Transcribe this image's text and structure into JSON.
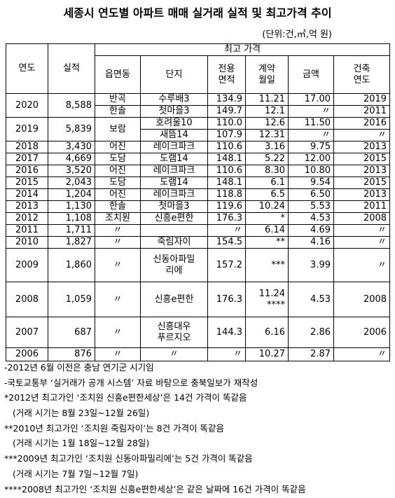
{
  "title": "세종시 연도별 아파트 매매 실거래 실적 및 최고가격 추이",
  "unit": "(단위:건,㎡,억 원)",
  "table": {
    "header": {
      "year": "연도",
      "count": "실적",
      "group": "최고 가격",
      "columns": [
        "읍면동",
        "단지",
        [
          "전용",
          "면적"
        ],
        [
          "계약",
          "월일"
        ],
        "금액",
        [
          "건축",
          "연도"
        ]
      ]
    },
    "rows": [
      {
        "year": "2020",
        "count": "8,588",
        "entries": [
          {
            "town": "반곡",
            "complex": "수루배3",
            "area": "134.9",
            "date": "11.21",
            "price": "17.00",
            "built": "2019"
          },
          {
            "town": "한솔",
            "complex": "첫마을3",
            "area": "149.7",
            "date": "12.1",
            "price": "〃",
            "built": "2011"
          }
        ]
      },
      {
        "year": "2019",
        "count": "5,839",
        "town": "보람",
        "entries": [
          {
            "complex": "호려울10",
            "area": "110.0",
            "date": "12.6",
            "price": "11.50",
            "built": "2016"
          },
          {
            "complex": "새뜸14",
            "area": "107.9",
            "date": "12.31",
            "price": "〃",
            "built": "〃"
          }
        ]
      },
      {
        "year": "2018",
        "count": "3,430",
        "entries": [
          {
            "town": "어진",
            "complex": "레이크파크",
            "area": "110.6",
            "date": "3.16",
            "price": "9.75",
            "built": "2013"
          }
        ]
      },
      {
        "year": "2017",
        "count": "4,669",
        "entries": [
          {
            "town": "도담",
            "complex": "도램14",
            "area": "148.1",
            "date": "5.22",
            "price": "12.00",
            "built": "2015"
          }
        ]
      },
      {
        "year": "2016",
        "count": "3,520",
        "entries": [
          {
            "town": "어진",
            "complex": "레이크파크",
            "area": "110.6",
            "date": "8.30",
            "price": "10.80",
            "built": "2013"
          }
        ]
      },
      {
        "year": "2015",
        "count": "2,043",
        "entries": [
          {
            "town": "도담",
            "complex": "도램14",
            "area": "148.1",
            "date": "6.1",
            "price": "9.54",
            "built": "2015"
          }
        ]
      },
      {
        "year": "2014",
        "count": "1,204",
        "entries": [
          {
            "town": "어진",
            "complex": "레이크파크",
            "area": "118.8",
            "date": "6.5",
            "price": "6.50",
            "built": "2013"
          }
        ]
      },
      {
        "year": "2013",
        "count": "1,130",
        "entries": [
          {
            "town": "한솔",
            "complex": "첫마을3",
            "area": "119.6",
            "date": "10.24",
            "price": "5.53",
            "built": "2011"
          }
        ]
      },
      {
        "year": "2012",
        "count": "1,108",
        "entries": [
          {
            "town": "조치원",
            "complex": "신흥e편한",
            "area": "176.3",
            "date": "*",
            "price": "4.53",
            "built": "2008"
          }
        ]
      },
      {
        "year": "2011",
        "count": "1,711",
        "entries": [
          {
            "town": "〃",
            "complex": null,
            "area": "〃",
            "date": "6.14",
            "price": "4.69",
            "built": "〃"
          }
        ]
      },
      {
        "year": "2010",
        "count": "1,827",
        "entries": [
          {
            "town": "〃",
            "complex": "죽림자이",
            "area": "154.5",
            "date": "**",
            "price": "4.16",
            "built": "〃"
          }
        ]
      },
      {
        "year": "2009",
        "count": "1,860",
        "entries": [
          {
            "town": "〃",
            "complex": [
              "신동아파밀",
              "리에"
            ],
            "area": "157.2",
            "date": "***",
            "price": "3.99",
            "built": "〃"
          }
        ]
      },
      {
        "year": "2008",
        "count": "1,059",
        "entries": [
          {
            "town": "〃",
            "complex": "신흥e편한",
            "area": "176.3",
            "date": [
              "11.24",
              "****"
            ],
            "price": "4.53",
            "built": "2008"
          }
        ]
      },
      {
        "year": "2007",
        "count": "687",
        "entries": [
          {
            "town": "〃",
            "complex": [
              "신흥대우",
              "푸르지오"
            ],
            "area": "144.3",
            "date": "6.16",
            "price": "2.86",
            "built": "2006"
          }
        ]
      },
      {
        "year": "2006",
        "count": "876",
        "entries": [
          {
            "town": "〃",
            "complex": "〃",
            "area": "〃",
            "date": "10.27",
            "price": "2.87",
            "built": "〃"
          }
        ]
      }
    ]
  },
  "notes": [
    "-2012년 6월 이전은 충남 연기군 시기임",
    "-국토교통부 ‘실거래가 공개 시스템’ 자료 바탕으로 충북일보가 재작성",
    "*2012년 최고가인 ‘조치원 신흥e편한세상’은 14건 가격이 똑같음",
    "(거래 시기는 8월 23일~12월 26일)",
    "**2010년 최고가인 ‘조치원 죽림자이’는 8건 가격이 똑같음",
    "(거래 시기는 1월 18일~12월 28일)",
    "***2009년 최고가인 ‘조치원 신동아파밀리에’는 5건 가격이 똑같음",
    "(거래 시기는 7월 7일~12월 7일)",
    "****2008년 최고가인 ‘조치원 신흥e편한세상’은 같은 날짜에 16건 가격이 똑같음"
  ]
}
